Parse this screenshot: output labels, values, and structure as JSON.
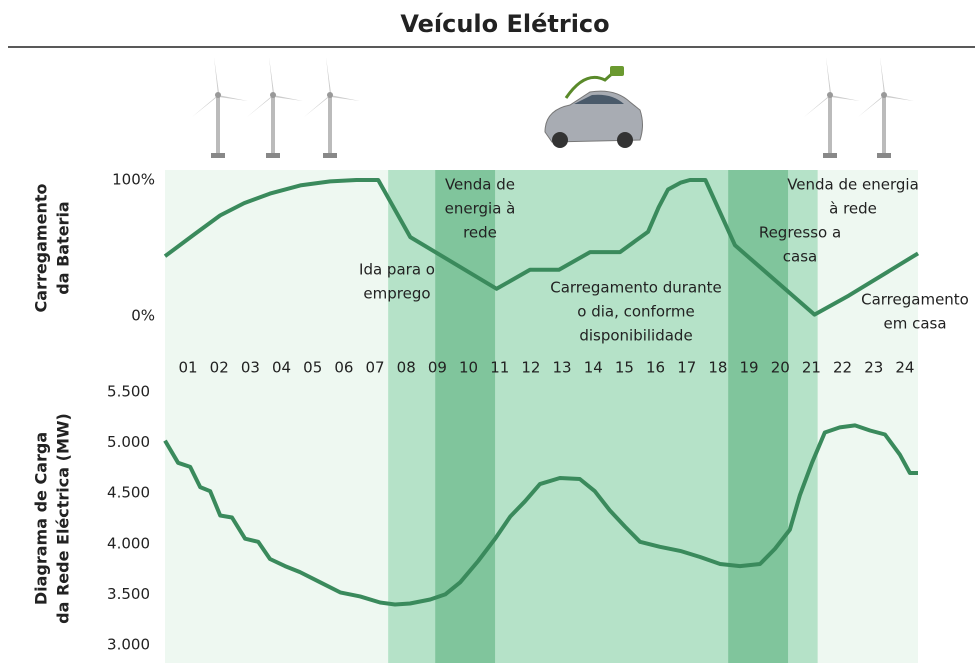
{
  "title": "Veículo Elétrico",
  "chart_data": [
    {
      "type": "line",
      "y_title": [
        "Carregamento",
        "da Bateria"
      ],
      "xlim": [
        0.26,
        24.42
      ],
      "ylim": [
        0,
        100
      ],
      "yticks": [
        {
          "value": 0,
          "label": "0%"
        },
        {
          "value": 100,
          "label": "100%"
        }
      ],
      "xticks": [
        {
          "value": 1,
          "label": "01"
        },
        {
          "value": 2,
          "label": "02"
        },
        {
          "value": 3,
          "label": "03"
        },
        {
          "value": 4,
          "label": "04"
        },
        {
          "value": 5,
          "label": "05"
        },
        {
          "value": 6,
          "label": "06"
        },
        {
          "value": 7,
          "label": "07"
        },
        {
          "value": 8,
          "label": "08"
        },
        {
          "value": 9,
          "label": "09"
        },
        {
          "value": 10,
          "label": "10"
        },
        {
          "value": 11,
          "label": "11"
        },
        {
          "value": 12,
          "label": "12"
        },
        {
          "value": 13,
          "label": "13"
        },
        {
          "value": 14,
          "label": "14"
        },
        {
          "value": 15,
          "label": "15"
        },
        {
          "value": 16,
          "label": "16"
        },
        {
          "value": 17,
          "label": "17"
        },
        {
          "value": 18,
          "label": "18"
        },
        {
          "value": 19,
          "label": "19"
        },
        {
          "value": 20,
          "label": "20"
        },
        {
          "value": 21,
          "label": "21"
        },
        {
          "value": 22,
          "label": "22"
        },
        {
          "value": 23,
          "label": "23"
        },
        {
          "value": 24,
          "label": "24"
        }
      ],
      "shading": [
        {
          "start": 0.26,
          "end": 24.42,
          "color": "#eef8f1"
        },
        {
          "start": 7.42,
          "end": 21.2,
          "color": "#b5e2c8"
        },
        {
          "start": 8.93,
          "end": 10.85,
          "color": "#80c59c"
        },
        {
          "start": 18.33,
          "end": 20.25,
          "color": "#80c59c"
        }
      ],
      "series": [
        {
          "color": "#3a8a5c",
          "x": [
            0.26,
            1.2,
            2.03,
            2.8,
            3.63,
            4.6,
            5.56,
            6.4,
            7.1,
            8.13,
            10.9,
            11.97,
            12.9,
            13.9,
            14.86,
            15.76,
            16.1,
            16.4,
            16.8,
            17.1,
            17.6,
            18.55,
            21.1,
            22.2,
            24.42
          ],
          "values": [
            44,
            60,
            74,
            83,
            90,
            96,
            99,
            100,
            100,
            58,
            20,
            34,
            34,
            47,
            47,
            62,
            80,
            93,
            98,
            100,
            100,
            52,
            1,
            15,
            46
          ]
        }
      ],
      "annotations": [
        {
          "lines": [
            "Venda de",
            "energia à",
            "rede"
          ]
        },
        {
          "lines": [
            "Ida para o",
            "emprego"
          ]
        },
        {
          "lines": [
            "Carregamento durante",
            "o dia, conforme",
            "disponibilidade"
          ]
        },
        {
          "lines": [
            "Regresso a",
            "casa"
          ]
        },
        {
          "lines": [
            "Venda de energia",
            "à rede"
          ]
        },
        {
          "lines": [
            "Carregamento",
            "em casa"
          ]
        }
      ]
    },
    {
      "type": "line",
      "y_title": [
        "Diagrama de Carga",
        "da Rede Eléctrica (MW)"
      ],
      "xlim": [
        0.26,
        24.42
      ],
      "ylim": [
        3000,
        5500
      ],
      "yticks": [
        {
          "value": 3000,
          "label": "3.000"
        },
        {
          "value": 3500,
          "label": "3.500"
        },
        {
          "value": 4000,
          "label": "4.000"
        },
        {
          "value": 4500,
          "label": "4.500"
        },
        {
          "value": 5000,
          "label": "5.000"
        },
        {
          "value": 5500,
          "label": "5.500"
        }
      ],
      "series": [
        {
          "color": "#3a8a5c",
          "x": [
            0.26,
            0.68,
            1.07,
            1.39,
            1.71,
            2.03,
            2.41,
            2.83,
            3.25,
            3.63,
            4.11,
            4.59,
            5.24,
            5.88,
            6.52,
            7.16,
            7.64,
            8.12,
            8.77,
            9.25,
            9.73,
            10.31,
            10.85,
            11.34,
            11.81,
            12.29,
            12.93,
            13.57,
            14.05,
            14.53,
            15.02,
            15.5,
            16.14,
            16.79,
            17.43,
            18.07,
            18.71,
            19.35,
            19.83,
            20.31,
            20.63,
            21.02,
            21.43,
            21.91,
            22.4,
            22.88,
            23.36,
            23.84,
            24.16,
            24.42
          ],
          "values": [
            5020,
            4800,
            4760,
            4560,
            4520,
            4280,
            4260,
            4050,
            4020,
            3850,
            3780,
            3720,
            3620,
            3520,
            3480,
            3420,
            3400,
            3410,
            3450,
            3500,
            3620,
            3830,
            4050,
            4270,
            4420,
            4590,
            4650,
            4640,
            4520,
            4330,
            4170,
            4020,
            3970,
            3930,
            3870,
            3800,
            3780,
            3800,
            3950,
            4140,
            4480,
            4800,
            5100,
            5150,
            5170,
            5120,
            5080,
            4880,
            4700,
            4700
          ]
        }
      ]
    }
  ]
}
